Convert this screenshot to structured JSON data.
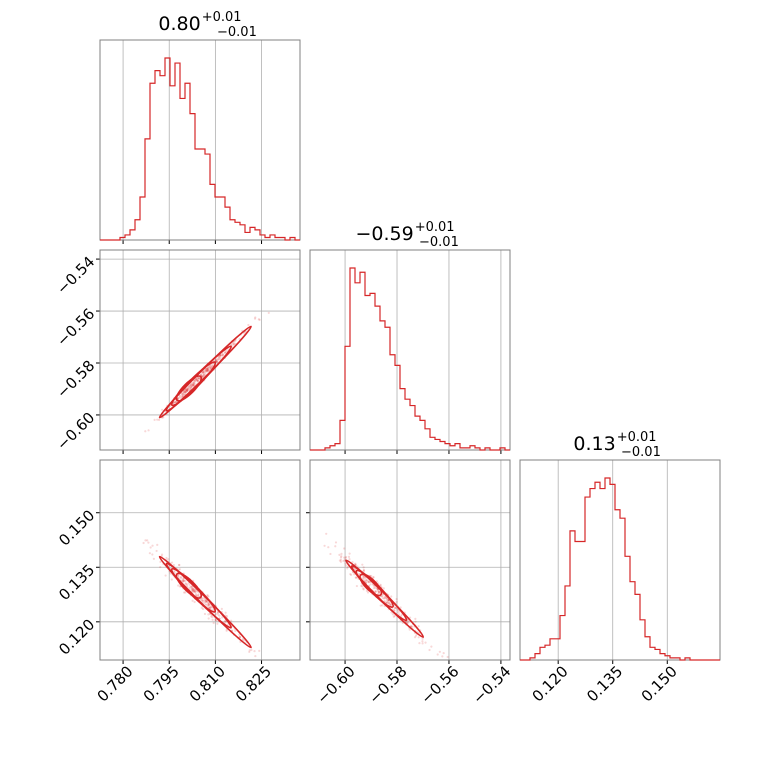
{
  "chart_data": {
    "type": "corner",
    "color": "#d62728",
    "grid": true,
    "parameters": [
      {
        "median": "0.80",
        "plus": "+0.01",
        "minus": "−0.01",
        "range": [
          0.7725,
          0.8375
        ],
        "ticks": [
          0.78,
          0.795,
          0.81,
          0.825
        ],
        "tick_labels": [
          "0.780",
          "0.795",
          "0.810",
          "0.825"
        ]
      },
      {
        "median": "−0.59",
        "plus": "+0.01",
        "minus": "−0.01",
        "range": [
          -0.6135,
          -0.5365
        ],
        "ticks": [
          -0.6,
          -0.58,
          -0.56,
          -0.54
        ],
        "tick_labels": [
          "−0.60",
          "−0.58",
          "−0.56",
          "−0.54"
        ]
      },
      {
        "median": "0.13",
        "plus": "+0.01",
        "minus": "−0.01",
        "range": [
          0.1095,
          0.1645
        ],
        "ticks": [
          0.12,
          0.135,
          0.15
        ],
        "tick_labels": [
          "0.120",
          "0.135",
          "0.150"
        ]
      }
    ],
    "histograms": [
      {
        "param": 0,
        "counts": [
          0,
          0,
          0,
          0,
          1,
          2,
          4,
          8,
          17,
          40,
          62,
          67,
          65,
          72,
          61,
          70,
          56,
          62,
          50,
          36,
          36,
          34,
          22,
          17,
          17,
          13,
          8,
          7,
          6,
          3,
          5,
          4,
          2,
          1,
          2,
          1,
          1,
          0,
          1,
          0
        ]
      },
      {
        "param": 1,
        "counts": [
          0,
          0,
          0,
          1,
          2,
          3,
          14,
          49,
          86,
          79,
          84,
          73,
          74,
          68,
          61,
          58,
          45,
          40,
          29,
          24,
          21,
          16,
          14,
          10,
          6,
          5,
          4,
          3,
          2,
          3,
          1,
          1,
          2,
          1,
          0,
          1,
          0,
          0,
          1,
          0
        ]
      },
      {
        "param": 2,
        "counts": [
          0,
          0,
          1,
          3,
          6,
          7,
          10,
          10,
          21,
          35,
          61,
          56,
          56,
          77,
          81,
          84,
          81,
          86,
          83,
          71,
          67,
          49,
          37,
          31,
          19,
          11,
          6,
          5,
          3,
          2,
          1,
          1,
          0,
          1,
          0,
          0,
          0,
          0,
          0,
          0
        ]
      }
    ],
    "scatter_panels": [
      {
        "x_param": 0,
        "y_param": 1,
        "relation": "y = -0.59 + 1.18*(x - 0.80)"
      },
      {
        "x_param": 0,
        "y_param": 2,
        "relation": "y = 0.13 - 0.84*(x - 0.80)"
      },
      {
        "x_param": 1,
        "y_param": 2,
        "relation": "y = 0.13 - 0.71*(x + 0.59)"
      }
    ]
  }
}
